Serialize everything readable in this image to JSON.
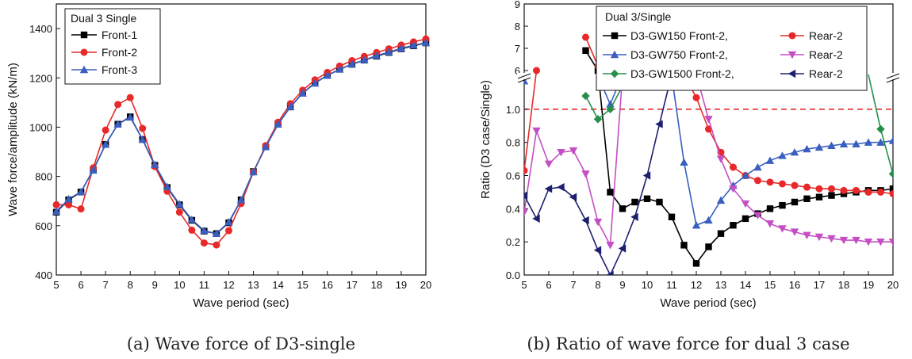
{
  "captions": {
    "a": "(a) Wave force of D3-single",
    "b": "(b) Ratio of wave force for dual 3 case"
  },
  "colors": {
    "black": "#000000",
    "red": "#e8292a",
    "blue": "#3a5fbf",
    "magenta": "#c44fc4",
    "green": "#24904a",
    "navy": "#1c1f6e",
    "refline": "#e8292a"
  },
  "chart_data": [
    {
      "type": "line",
      "title": "",
      "xlabel": "Wave period (sec)",
      "ylabel": "Wave force/amplitude (kN/m)",
      "xlim": [
        5,
        20
      ],
      "ylim": [
        400,
        1500
      ],
      "xticks": [
        "5",
        "6",
        "7",
        "8",
        "9",
        "10",
        "11",
        "12",
        "13",
        "14",
        "15",
        "16",
        "17",
        "18",
        "19",
        "20"
      ],
      "yticks": [
        "400",
        "600",
        "800",
        "1000",
        "1200",
        "1400"
      ],
      "grid": false,
      "legend": {
        "title": "Dual 3 Single",
        "placement": "top-left",
        "entries": [
          "Front-1",
          "Front-2",
          "Front-3"
        ]
      },
      "x": [
        5,
        5.5,
        6,
        6.5,
        7,
        7.5,
        8,
        8.5,
        9,
        9.5,
        10,
        10.5,
        11,
        11.5,
        12,
        12.5,
        13,
        13.5,
        14,
        14.5,
        15,
        15.5,
        16,
        16.5,
        17,
        17.5,
        18,
        18.5,
        19,
        19.5,
        20
      ],
      "series": [
        {
          "name": "Front-1",
          "marker": "square",
          "color": "black",
          "values": [
            655,
            705,
            737,
            827,
            930,
            1012,
            1042,
            950,
            845,
            755,
            685,
            622,
            578,
            568,
            612,
            705,
            820,
            920,
            1012,
            1082,
            1138,
            1180,
            1210,
            1235,
            1255,
            1272,
            1288,
            1303,
            1318,
            1330,
            1342
          ]
        },
        {
          "name": "Front-2",
          "marker": "circle",
          "color": "red",
          "values": [
            685,
            685,
            668,
            835,
            988,
            1092,
            1120,
            995,
            840,
            740,
            655,
            582,
            530,
            522,
            580,
            690,
            818,
            925,
            1020,
            1095,
            1150,
            1192,
            1222,
            1248,
            1270,
            1287,
            1303,
            1318,
            1333,
            1346,
            1358
          ]
        },
        {
          "name": "Front-3",
          "marker": "triangle",
          "color": "blue",
          "values": [
            658,
            708,
            738,
            825,
            930,
            1012,
            1040,
            950,
            848,
            758,
            688,
            625,
            580,
            568,
            615,
            705,
            818,
            920,
            1012,
            1083,
            1138,
            1178,
            1210,
            1235,
            1256,
            1273,
            1290,
            1305,
            1320,
            1332,
            1343
          ]
        }
      ]
    },
    {
      "type": "line",
      "title": "",
      "xlabel": "Wave period (sec)",
      "ylabel": "Ratio (D3 case/Single)",
      "xlim": [
        5,
        20
      ],
      "ylim": [
        0,
        9
      ],
      "axis_break": {
        "lower": [
          0,
          1.2
        ],
        "upper": [
          6,
          9
        ]
      },
      "xticks": [
        "5",
        "6",
        "7",
        "8",
        "9",
        "10",
        "11",
        "12",
        "13",
        "14",
        "15",
        "16",
        "17",
        "18",
        "19",
        "20"
      ],
      "yticks_lower": [
        "0.0",
        "0.2",
        "0.4",
        "0.6",
        "0.8",
        "1.0"
      ],
      "yticks_upper": [
        "6",
        "7",
        "8",
        "9"
      ],
      "reference_line": 1.0,
      "grid": false,
      "legend": {
        "title": "Dual 3/Single",
        "placement": "top-right",
        "rows": [
          {
            "front": "D3-GW150 Front-2,",
            "rear": "Rear-2"
          },
          {
            "front": "D3-GW750 Front-2,",
            "rear": "Rear-2"
          },
          {
            "front": "D3-GW1500 Front-2,",
            "rear": "Rear-2"
          }
        ]
      },
      "x": [
        5,
        5.5,
        6,
        6.5,
        7,
        7.5,
        8,
        8.5,
        9,
        9.5,
        10,
        10.5,
        11,
        11.5,
        12,
        12.5,
        13,
        13.5,
        14,
        14.5,
        15,
        15.5,
        16,
        16.5,
        17,
        17.5,
        18,
        18.5,
        19,
        19.5,
        20
      ],
      "series": [
        {
          "name": "D3-GW150 Front-2",
          "marker": "square",
          "color": "black",
          "values": [
            null,
            null,
            null,
            null,
            null,
            6.9,
            6.0,
            0.5,
            0.4,
            0.44,
            0.46,
            0.44,
            0.35,
            0.18,
            0.07,
            0.17,
            0.25,
            0.3,
            0.34,
            0.37,
            0.4,
            0.42,
            0.44,
            0.46,
            0.47,
            0.48,
            0.49,
            0.5,
            0.51,
            0.51,
            0.52
          ]
        },
        {
          "name": "Rear-2 (GW150)",
          "marker": "circle",
          "color": "red",
          "values": [
            0.63,
            6.0,
            null,
            null,
            null,
            7.5,
            6.2,
            null,
            null,
            null,
            null,
            null,
            null,
            1.4,
            1.07,
            0.88,
            0.74,
            0.65,
            0.6,
            0.57,
            0.56,
            0.55,
            0.54,
            0.53,
            0.52,
            0.52,
            0.51,
            0.51,
            0.5,
            0.5,
            0.49
          ]
        },
        {
          "name": "D3-GW750 Front-2",
          "marker": "triangle",
          "color": "blue",
          "values": [
            1.17,
            null,
            null,
            null,
            null,
            null,
            1.2,
            1.03,
            1.25,
            null,
            null,
            null,
            1.2,
            0.68,
            0.3,
            0.33,
            0.45,
            0.54,
            0.6,
            0.65,
            0.69,
            0.72,
            0.74,
            0.76,
            0.77,
            0.78,
            0.79,
            0.79,
            0.8,
            0.8,
            0.81
          ]
        },
        {
          "name": "Rear-2 (GW750)",
          "marker": "inverted-triangle",
          "color": "magenta",
          "values": [
            0.38,
            0.87,
            0.67,
            0.74,
            0.75,
            0.61,
            0.32,
            0.18,
            1.3,
            null,
            null,
            null,
            null,
            null,
            1.3,
            0.94,
            0.7,
            0.52,
            0.43,
            0.36,
            0.31,
            0.28,
            0.26,
            0.24,
            0.23,
            0.22,
            0.21,
            0.21,
            0.2,
            0.2,
            0.2
          ]
        },
        {
          "name": "D3-GW1500 Front-2",
          "marker": "diamond",
          "color": "green",
          "values": [
            null,
            null,
            null,
            null,
            null,
            1.08,
            0.94,
            1.0,
            1.14,
            1.3,
            null,
            null,
            null,
            null,
            null,
            null,
            null,
            null,
            null,
            null,
            null,
            null,
            null,
            null,
            null,
            null,
            null,
            null,
            1.3,
            0.88,
            0.61
          ]
        },
        {
          "name": "Rear-2 (GW1500)",
          "marker": "left-triangle",
          "color": "navy",
          "values": [
            0.48,
            0.34,
            0.52,
            0.53,
            0.47,
            0.33,
            0.15,
            0.0,
            0.16,
            0.35,
            0.6,
            0.91,
            1.3,
            null,
            null,
            null,
            null,
            null,
            null,
            null,
            null,
            null,
            null,
            null,
            null,
            null,
            null,
            null,
            null,
            null,
            null
          ]
        }
      ]
    }
  ]
}
